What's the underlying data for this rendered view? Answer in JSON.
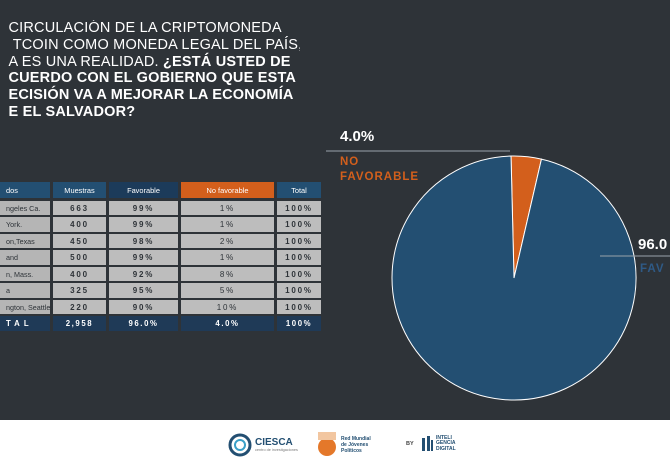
{
  "question": {
    "line1": "CIRCULACIÓN DE LA CRIPTOMONEDA",
    "line2": "TCOIN COMO MONEDA LEGAL DEL PAÍS,",
    "line3_normal": "A ES UNA REALIDAD.",
    "line3_bold": "¿ESTÁ USTED DE",
    "line4": "CUERDO CON EL GOBIERNO QUE ESTA",
    "line5": "ECISIÓN VA A MEJORAR LA ECONOMÍA",
    "line6": "E EL SALVADOR?"
  },
  "table": {
    "headers": [
      "dos",
      "Muestras",
      "Favorable",
      "No favorable",
      "Total"
    ],
    "rows": [
      {
        "place": "ngeles Ca.",
        "muestras": "663",
        "favorable": "99%",
        "no_favorable": "1%",
        "total": "100%"
      },
      {
        "place": "York.",
        "muestras": "400",
        "favorable": "99%",
        "no_favorable": "1%",
        "total": "100%"
      },
      {
        "place": "on,Texas",
        "muestras": "450",
        "favorable": "98%",
        "no_favorable": "2%",
        "total": "100%"
      },
      {
        "place": "and",
        "muestras": "500",
        "favorable": "99%",
        "no_favorable": "1%",
        "total": "100%"
      },
      {
        "place": "n, Mass.",
        "muestras": "400",
        "favorable": "92%",
        "no_favorable": "8%",
        "total": "100%"
      },
      {
        "place": "a",
        "muestras": "325",
        "favorable": "95%",
        "no_favorable": "5%",
        "total": "100%"
      },
      {
        "place": "ngton, Seattle",
        "muestras": "220",
        "favorable": "90%",
        "no_favorable": "10%",
        "total": "100%"
      }
    ],
    "total_row": {
      "label": "TAL",
      "muestras": "2,958",
      "favorable": "96.0%",
      "no_favorable": "4.0%",
      "total": "100%"
    }
  },
  "chart_data": {
    "type": "pie",
    "slices": [
      {
        "label": "FAVORABLE",
        "value": 96.0,
        "display": "96.0",
        "shown_label": "FAV",
        "color": "#234f72"
      },
      {
        "label": "NO FAVORABLE",
        "value": 4.0,
        "display": "4.0%",
        "color": "#d35f1c"
      }
    ]
  },
  "labels": {
    "no_fav_pct": "4.0%",
    "no_fav_line1": "NO",
    "no_fav_line2": "FAVORABLE",
    "fav_pct": "96.0",
    "fav_cat": "FAV"
  },
  "footer": {
    "logo1_name": "CIESCA",
    "logo1_sub": "centro de investigaciones",
    "logo2_line1": "Red Mundial",
    "logo2_line2": "de Jóvenes",
    "logo2_line3": "Políticos",
    "by": "BY",
    "logo3_line1": "INTELI",
    "logo3_line2": "GENCIA",
    "logo3_line3": "DIGITAL"
  },
  "colors": {
    "background": "#2e3338",
    "favorable": "#234f72",
    "no_favorable": "#d35f1c",
    "cell": "#bdbdbd"
  }
}
